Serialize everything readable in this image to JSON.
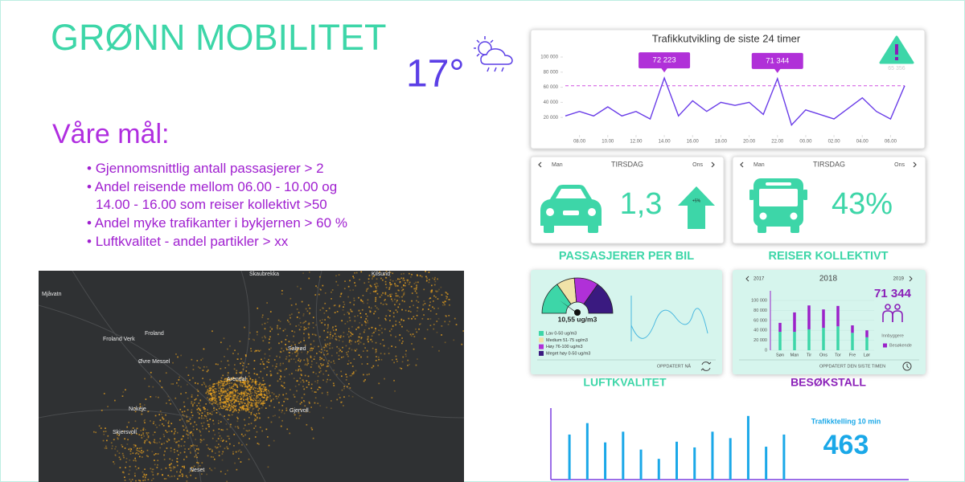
{
  "header": {
    "title": "GRØNN MOBILITET",
    "temperature": "17°"
  },
  "goals": {
    "heading": "Våre mål:",
    "items": [
      "Gjennomsnittlig antall passasjerer > 2",
      "Andel reisende mellom 06.00 - 10.00 og 14.00 - 16.00 som reiser kollektivt >50",
      "Andel myke trafikanter i bykjernen > 60 %",
      "Luftkvalitet - andel partikler > xx"
    ]
  },
  "map": {
    "places": [
      "Mjåvatn",
      "Skaubrekka",
      "Kilsund",
      "Froland",
      "Froland Verk",
      "Øvre Messel",
      "Arendal",
      "Saltrød",
      "Nokeje",
      "Gjervoll",
      "Skjersvoll",
      "Neset"
    ]
  },
  "traffic_chart": {
    "type": "line",
    "title": "Trafikkutvikling de siste 24 timer",
    "x": [
      0,
      1,
      2,
      3,
      4,
      5,
      6,
      7,
      8,
      9,
      10,
      11,
      12,
      13,
      14,
      15,
      16,
      17,
      18,
      19,
      20,
      21,
      22,
      23,
      24
    ],
    "values": [
      22000,
      28000,
      22000,
      34000,
      22000,
      28000,
      18000,
      72223,
      22000,
      42000,
      28000,
      40000,
      36000,
      40000,
      24000,
      71344,
      10000,
      30000,
      24000,
      18000,
      32000,
      46000,
      28000,
      18000,
      62000
    ],
    "value_labels": [
      null,
      null,
      null,
      null,
      null,
      null,
      null,
      "72 223",
      null,
      null,
      null,
      null,
      null,
      null,
      null,
      "71 344",
      null,
      null,
      null,
      null,
      null,
      null,
      null,
      null,
      null
    ],
    "color": "#6a3de8",
    "xlim": [
      0,
      24
    ],
    "xticks": [
      {
        "value": 1,
        "label": "08.00"
      },
      {
        "value": 3,
        "label": "10.00"
      },
      {
        "value": 5,
        "label": "12.00"
      },
      {
        "value": 7,
        "label": "14.00"
      },
      {
        "value": 9,
        "label": "16.00"
      },
      {
        "value": 11,
        "label": "18.00"
      },
      {
        "value": 13,
        "label": "20.00"
      },
      {
        "value": 15,
        "label": "22.00"
      },
      {
        "value": 17,
        "label": "00.00"
      },
      {
        "value": 19,
        "label": "02.00"
      },
      {
        "value": 21,
        "label": "04.00"
      },
      {
        "value": 23,
        "label": "06.00"
      }
    ],
    "ylim": [
      0,
      100000
    ],
    "yticks": [
      {
        "value": 20000,
        "label": "20 000"
      },
      {
        "value": 40000,
        "label": "40 000"
      },
      {
        "value": 60000,
        "label": "60 000"
      },
      {
        "value": 80000,
        "label": "80 000"
      },
      {
        "value": 100000,
        "label": "100 000"
      }
    ],
    "threshold": 62000,
    "threshold_color": "#d050e0",
    "warning_label": "65 356"
  },
  "passengers_card": {
    "prev_day": "Man",
    "day": "TIRSDAG",
    "next_day": "Ons",
    "value": "1,3",
    "change": "+5%",
    "label": "PASSASJERER PER BIL"
  },
  "transit_card": {
    "prev_day": "Man",
    "day": "TIRSDAG",
    "next_day": "Ons",
    "value": "43%",
    "label": "REISER KOLLEKTIVT"
  },
  "air_quality": {
    "reading": "10,55 ug/m3",
    "legend": [
      {
        "name": "Lav 0-50 ug/m3",
        "color": "#3dd6a8"
      },
      {
        "name": "Medium 51-75 ug/m3",
        "color": "#f0e2a8"
      },
      {
        "name": "Høy 76-100 ug/m3",
        "color": "#b030d8"
      },
      {
        "name": "Meget høy 0-50 ug/m3",
        "color": "#3a1a80"
      }
    ],
    "updated": "OPPDATERT NÅ",
    "label": "LUFTKVALITET"
  },
  "visitors": {
    "prev_year": "2017",
    "year": "2018",
    "next_year": "2019",
    "total": "71 344",
    "chart": {
      "type": "bar",
      "categories": [
        "Søn",
        "Man",
        "Tir",
        "Ons",
        "Tor",
        "Fre",
        "Lør"
      ],
      "series": [
        {
          "name": "Innbyggere",
          "color": "#3dd6a8",
          "values": [
            37000,
            37000,
            42000,
            45000,
            48000,
            35000,
            26000
          ]
        },
        {
          "name": "Besøkende",
          "color": "#9b22c9",
          "values": [
            18000,
            39000,
            48000,
            37000,
            41000,
            15000,
            14000
          ]
        }
      ],
      "ylim": [
        0,
        100000
      ],
      "yticks": [
        0,
        {
          "value": 20000,
          "label": "20 000"
        },
        {
          "value": 40000,
          "label": "40 000"
        },
        {
          "value": 60000,
          "label": "60 000"
        },
        {
          "value": 80000,
          "label": "80 000"
        },
        {
          "value": 100000,
          "label": "100 000"
        }
      ]
    },
    "updated": "OPPDATERT DEN SISTE TIMEN",
    "label": "BESØKSTALL"
  },
  "counter": {
    "title": "Trafikktelling 10 min",
    "value": "463",
    "chart": {
      "type": "bar",
      "values": [
        63,
        79,
        52,
        67,
        42,
        29,
        53,
        45,
        67,
        58,
        89,
        46,
        63
      ],
      "color": "#1aa8e8",
      "ylim": [
        0,
        100
      ]
    }
  }
}
